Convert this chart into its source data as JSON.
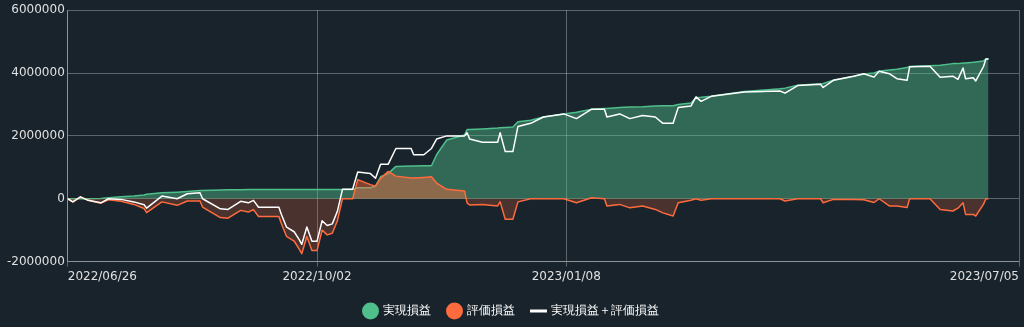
{
  "chart_data": {
    "type": "area",
    "x": [
      "2022-06-26",
      "2022-06-28",
      "2022-07-01",
      "2022-07-04",
      "2022-07-09",
      "2022-07-12",
      "2022-07-17",
      "2022-07-22",
      "2022-07-26",
      "2022-07-27",
      "2022-08-02",
      "2022-08-08",
      "2022-08-12",
      "2022-08-17",
      "2022-08-18",
      "2022-08-25",
      "2022-08-28",
      "2022-09-02",
      "2022-09-05",
      "2022-09-07",
      "2022-09-09",
      "2022-09-17",
      "2022-09-18",
      "2022-09-20",
      "2022-09-23",
      "2022-09-25",
      "2022-09-26",
      "2022-09-28",
      "2022-09-30",
      "2022-10-02",
      "2022-10-04",
      "2022-10-06",
      "2022-10-08",
      "2022-10-10",
      "2022-10-12",
      "2022-10-16",
      "2022-10-18",
      "2022-10-23",
      "2022-10-25",
      "2022-10-27",
      "2022-10-30",
      "2022-11-02",
      "2022-11-08",
      "2022-11-09",
      "2022-11-13",
      "2022-11-16",
      "2022-11-18",
      "2022-11-22",
      "2022-11-29",
      "2022-11-30",
      "2022-12-01",
      "2022-12-06",
      "2022-12-12",
      "2022-12-13",
      "2022-12-15",
      "2022-12-18",
      "2022-12-20",
      "2022-12-25",
      "2022-12-30",
      "2023-01-07",
      "2023-01-12",
      "2023-01-18",
      "2023-01-23",
      "2023-01-24",
      "2023-01-29",
      "2023-02-02",
      "2023-02-07",
      "2023-02-12",
      "2023-02-15",
      "2023-02-19",
      "2023-02-21",
      "2023-02-26",
      "2023-02-28",
      "2023-03-02",
      "2023-03-06",
      "2023-03-19",
      "2023-04-02",
      "2023-04-04",
      "2023-04-09",
      "2023-04-18",
      "2023-04-19",
      "2023-04-23",
      "2023-05-01",
      "2023-05-05",
      "2023-05-09",
      "2023-05-11",
      "2023-05-15",
      "2023-05-18",
      "2023-05-22",
      "2023-05-23",
      "2023-05-31",
      "2023-06-04",
      "2023-06-09",
      "2023-06-11",
      "2023-06-13",
      "2023-06-14",
      "2023-06-17",
      "2023-06-18",
      "2023-06-21",
      "2023-06-22",
      "2023-06-23"
    ],
    "series": [
      {
        "name": "実現損益",
        "color": "#4fbf8b",
        "values": [
          0,
          0,
          0,
          0,
          10000,
          30000,
          60000,
          84000,
          120000,
          140000,
          190000,
          210000,
          230000,
          260000,
          265000,
          280000,
          285000,
          290000,
          292000,
          295000,
          295000,
          295000,
          295000,
          295000,
          295000,
          295000,
          295000,
          295000,
          295000,
          295000,
          295000,
          295000,
          295000,
          295000,
          295000,
          295000,
          350000,
          350000,
          400000,
          700000,
          800000,
          1030000,
          1040000,
          1040000,
          1050000,
          1050000,
          1400000,
          1870000,
          2030000,
          2200000,
          2200000,
          2220000,
          2250000,
          2260000,
          2270000,
          2280000,
          2450000,
          2500000,
          2600000,
          2700000,
          2750000,
          2850000,
          2870000,
          2870000,
          2900000,
          2920000,
          2930000,
          2950000,
          2960000,
          2960000,
          3000000,
          3050000,
          3220000,
          3230000,
          3260000,
          3410000,
          3500000,
          3520000,
          3610000,
          3660000,
          3670000,
          3770000,
          3900000,
          3970000,
          4000000,
          4060000,
          4100000,
          4120000,
          4180000,
          4210000,
          4230000,
          4250000,
          4300000,
          4300000,
          4320000,
          4320000,
          4340000,
          4350000,
          4380000,
          4450000,
          4450000
        ]
      },
      {
        "name": "評価損益",
        "color": "#ff6b3d",
        "values": [
          0,
          -100000,
          60000,
          -50000,
          -140000,
          -30000,
          -80000,
          -180000,
          -310000,
          -440000,
          -100000,
          -210000,
          -70000,
          -70000,
          -265000,
          -600000,
          -620000,
          -370000,
          -420000,
          -345000,
          -565000,
          -565000,
          -795000,
          -1195000,
          -1345000,
          -1600000,
          -1750000,
          -1200000,
          -1650000,
          -1650000,
          -1000000,
          -1150000,
          -1100000,
          -700000,
          0,
          0,
          610000,
          450000,
          400000,
          650000,
          870000,
          720000,
          660000,
          660000,
          680000,
          700000,
          500000,
          300000,
          250000,
          -130000,
          -200000,
          -180000,
          -230000,
          -100000,
          -650000,
          -650000,
          -100000,
          0,
          0,
          0,
          -130000,
          30000,
          0,
          -230000,
          -180000,
          -290000,
          -230000,
          -340000,
          -450000,
          -550000,
          -130000,
          -50000,
          0,
          -50000,
          0,
          0,
          0,
          -70000,
          0,
          0,
          -130000,
          -20000,
          -20000,
          -30000,
          -120000,
          0,
          -230000,
          -230000,
          -280000,
          0,
          0,
          -340000,
          -390000,
          -300000,
          -130000,
          -500000,
          -500000,
          -550000,
          -180000,
          0,
          0
        ]
      },
      {
        "name": "実現損益＋評価損益",
        "type": "line",
        "color": "#ffffff",
        "values": [
          0,
          -100000,
          60000,
          -50000,
          -130000,
          0,
          -20000,
          -100000,
          -190000,
          -300000,
          84000,
          0,
          160000,
          190000,
          0,
          -320000,
          -340000,
          -80000,
          -130000,
          -50000,
          -270000,
          -270000,
          -500000,
          -900000,
          -1050000,
          -1300000,
          -1450000,
          -900000,
          -1350000,
          -1350000,
          -700000,
          -850000,
          -800000,
          -400000,
          300000,
          300000,
          850000,
          800000,
          650000,
          1100000,
          1100000,
          1600000,
          1600000,
          1400000,
          1400000,
          1600000,
          1900000,
          2000000,
          2000000,
          2100000,
          1900000,
          1800000,
          1800000,
          2100000,
          1500000,
          1500000,
          2300000,
          2400000,
          2600000,
          2700000,
          2550000,
          2850000,
          2850000,
          2600000,
          2700000,
          2550000,
          2650000,
          2600000,
          2400000,
          2400000,
          2900000,
          2950000,
          3240000,
          3100000,
          3260000,
          3400000,
          3430000,
          3360000,
          3600000,
          3640000,
          3540000,
          3770000,
          3900000,
          3980000,
          3870000,
          4060000,
          3980000,
          3820000,
          3770000,
          4200000,
          4220000,
          3870000,
          3900000,
          3800000,
          4160000,
          3820000,
          3850000,
          3750000,
          4200000,
          4450000,
          4450000
        ]
      }
    ],
    "xlim": [
      "2022-06-26",
      "2023-07-05"
    ],
    "xticks": [
      {
        "value": "2022-06-26",
        "label": "2022/06/26"
      },
      {
        "value": "2022-10-02",
        "label": "2022/10/02"
      },
      {
        "value": "2023-01-08",
        "label": "2023/01/08"
      },
      {
        "value": "2023-07-05",
        "label": "2023/07/05"
      }
    ],
    "ylim": [
      -2000000,
      6000000
    ],
    "yticks": [
      -2000000,
      0,
      2000000,
      4000000,
      6000000
    ],
    "grid": true,
    "legend": "bottom",
    "marker": "none"
  }
}
